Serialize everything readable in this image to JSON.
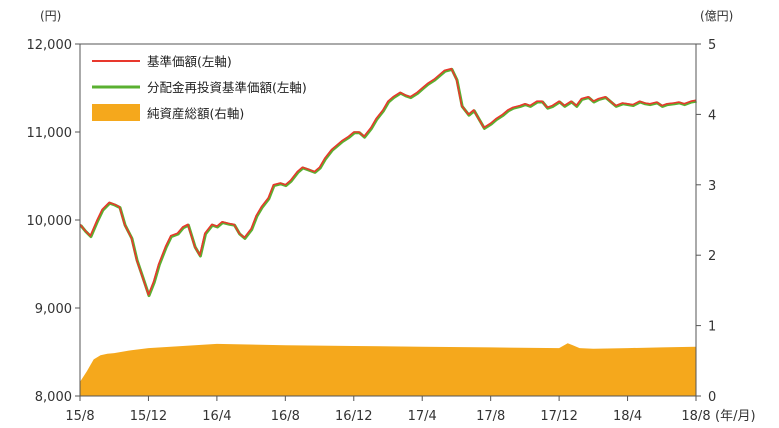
{
  "chart_data": {
    "type": "line+area",
    "left_axis": {
      "unit": "(円)",
      "ticks": [
        "12,000",
        "11,000",
        "10,000",
        "9,000",
        "8,000"
      ],
      "tick_values": [
        12000,
        11000,
        10000,
        9000,
        8000
      ],
      "ylim": [
        8000,
        12000
      ]
    },
    "right_axis": {
      "unit": "(億円)",
      "ticks": [
        "5",
        "4",
        "3",
        "2",
        "1",
        "0"
      ],
      "tick_values": [
        5,
        4,
        3,
        2,
        1,
        0
      ],
      "ylim": [
        0,
        5
      ]
    },
    "x_axis": {
      "ticks": [
        "15/8",
        "15/12",
        "16/4",
        "16/8",
        "16/12",
        "17/4",
        "17/8",
        "17/12",
        "18/4",
        "18/8"
      ],
      "unit": "(年/月)"
    },
    "legend": [
      {
        "label": "基準価額(左軸)",
        "color": "#e8382d",
        "kind": "line"
      },
      {
        "label": "分配金再投資基準価額(左軸)",
        "color": "#5ab031",
        "kind": "line"
      },
      {
        "label": "純資産総額(右軸)",
        "color": "#f5a81c",
        "kind": "area"
      }
    ],
    "legend_position": "top-left",
    "grid": false,
    "nav_series": {
      "x": [
        0,
        0.3,
        0.6,
        1.0,
        1.3,
        1.7,
        2.0,
        2.3,
        2.6,
        3.0,
        3.3,
        3.6,
        4.0,
        4.3,
        4.6,
        5.0,
        5.3,
        5.7,
        6.0,
        6.3,
        6.7,
        7.0,
        7.3,
        7.7,
        8.0,
        8.3,
        8.7,
        9.0,
        9.3,
        9.6,
        10.0,
        10.3,
        10.6,
        11.0,
        11.3,
        11.7,
        12.0,
        12.3,
        12.7,
        13.0,
        13.3,
        13.7,
        14.0,
        14.3,
        14.7,
        15.0,
        15.3,
        15.7,
        16.0,
        16.3,
        16.6,
        17.0,
        17.3,
        17.7,
        18.0,
        18.3,
        18.7,
        19.0,
        19.3,
        19.7,
        20.0,
        20.3,
        20.7,
        21.0,
        21.3,
        21.7,
        22.0,
        22.3,
        22.7,
        23.0,
        23.3,
        23.6,
        24.0,
        24.3,
        24.7,
        25.0,
        25.3,
        25.7,
        26.0,
        26.3,
        26.7,
        27.0,
        27.3,
        27.6,
        28.0,
        28.3,
        28.7,
        29.0,
        29.3,
        29.7,
        30.0,
        30.3,
        30.7,
        31.0,
        31.3,
        31.7,
        32.0,
        32.3,
        32.7,
        33.0,
        33.3,
        33.7,
        34.0,
        34.3,
        34.7,
        35.0,
        35.3,
        35.7,
        36.0
      ],
      "y": [
        9950,
        9880,
        9820,
        10000,
        10120,
        10200,
        10180,
        10150,
        9950,
        9800,
        9550,
        9380,
        9150,
        9300,
        9500,
        9700,
        9820,
        9850,
        9920,
        9950,
        9700,
        9600,
        9850,
        9950,
        9930,
        9980,
        9960,
        9950,
        9850,
        9800,
        9900,
        10050,
        10150,
        10250,
        10400,
        10420,
        10400,
        10450,
        10550,
        10600,
        10580,
        10550,
        10600,
        10700,
        10800,
        10850,
        10900,
        10950,
        11000,
        11000,
        10950,
        11050,
        11150,
        11250,
        11350,
        11400,
        11450,
        11420,
        11400,
        11450,
        11500,
        11550,
        11600,
        11650,
        11700,
        11720,
        11600,
        11300,
        11200,
        11250,
        11150,
        11050,
        11100,
        11150,
        11200,
        11250,
        11280,
        11300,
        11320,
        11300,
        11350,
        11350,
        11280,
        11300,
        11350,
        11300,
        11350,
        11300,
        11380,
        11400,
        11350,
        11380,
        11400,
        11350,
        11300,
        11330,
        11320,
        11310,
        11350,
        11330,
        11320,
        11340,
        11300,
        11320,
        11330,
        11340,
        11320,
        11350,
        11360
      ]
    },
    "net_assets_series": {
      "x": [
        0,
        0.4,
        0.8,
        1.2,
        1.6,
        2.0,
        3.0,
        4.0,
        6.0,
        8.0,
        12.0,
        16.0,
        20.0,
        24.0,
        28.0,
        28.5,
        28.8,
        29.2,
        30.0,
        32.0,
        34.0,
        36.0
      ],
      "y": [
        0.2,
        0.35,
        0.52,
        0.58,
        0.6,
        0.61,
        0.65,
        0.68,
        0.71,
        0.74,
        0.72,
        0.71,
        0.7,
        0.69,
        0.68,
        0.75,
        0.72,
        0.68,
        0.67,
        0.68,
        0.69,
        0.7
      ]
    }
  }
}
